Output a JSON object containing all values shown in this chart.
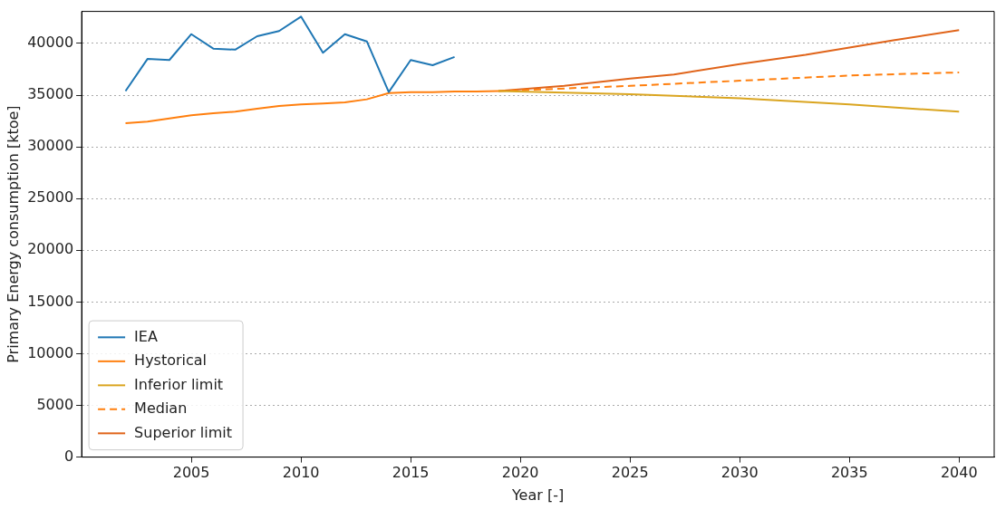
{
  "chart_data": {
    "type": "line",
    "xlabel": "Year [-]",
    "ylabel": "Primary Energy consumption [ktoe]",
    "xlim": [
      2000,
      2041.6
    ],
    "xticks": [
      2005,
      2010,
      2015,
      2020,
      2025,
      2030,
      2035,
      2040
    ],
    "ylim": [
      0,
      43100
    ],
    "yticks": [
      0,
      5000,
      10000,
      15000,
      20000,
      25000,
      30000,
      35000,
      40000
    ],
    "grid": "y",
    "legend": "bottom left",
    "marker": "none",
    "series": [
      {
        "name": "IEA",
        "color": "#1f77b4",
        "x": [
          2002,
          2003,
          2004,
          2005,
          2006,
          2007,
          2008,
          2009,
          2010,
          2011,
          2012,
          2013,
          2014,
          2015,
          2016,
          2017
        ],
        "values": [
          35400,
          38500,
          38400,
          40900,
          39500,
          39400,
          40700,
          41200,
          42600,
          39100,
          40900,
          40200,
          35300,
          38400,
          37900,
          38700
        ]
      },
      {
        "name": "Hystorical",
        "color": "#ff7f0e",
        "x": [
          2002,
          2003,
          2004,
          2005,
          2006,
          2007,
          2008,
          2009,
          2010,
          2011,
          2012,
          2013,
          2014,
          2015,
          2016,
          2017,
          2018,
          2019
        ],
        "values": [
          32300,
          32450,
          32750,
          33050,
          33250,
          33400,
          33700,
          33950,
          34100,
          34200,
          34300,
          34600,
          35200,
          35300,
          35300,
          35350,
          35350,
          35400
        ]
      },
      {
        "name": "Inferior limit",
        "color": "#daa520",
        "x": [
          2019,
          2025,
          2030,
          2035,
          2040
        ],
        "values": [
          35400,
          35100,
          34700,
          34100,
          33400
        ]
      },
      {
        "name": "Median",
        "color": "#ff7f0e",
        "line_style": "dashed",
        "x": [
          2019,
          2025,
          2030,
          2035,
          2040
        ],
        "values": [
          35400,
          35900,
          36400,
          36900,
          37200
        ]
      },
      {
        "name": "Superior limit",
        "color": "#e0641a",
        "x": [
          2019,
          2022,
          2025,
          2027,
          2030,
          2033,
          2035,
          2037,
          2040
        ],
        "values": [
          35400,
          35900,
          36600,
          37000,
          38000,
          38900,
          39600,
          40300,
          41300
        ]
      }
    ]
  }
}
